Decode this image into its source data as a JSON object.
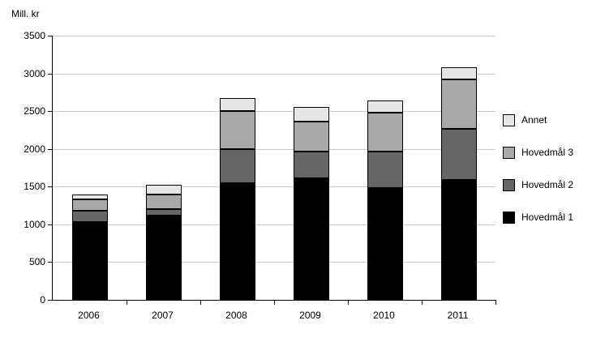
{
  "chart_data": {
    "type": "bar",
    "stacked": true,
    "categories": [
      "2006",
      "2007",
      "2008",
      "2009",
      "2010",
      "2011"
    ],
    "series": [
      {
        "name": "Hovedmål 1",
        "color": "#000000",
        "values": [
          1030,
          1120,
          1550,
          1610,
          1480,
          1590
        ]
      },
      {
        "name": "Hovedmål 2",
        "color": "#666666",
        "values": [
          150,
          80,
          450,
          350,
          490,
          680
        ]
      },
      {
        "name": "Hovedmål 3",
        "color": "#a9a9a9",
        "values": [
          150,
          200,
          500,
          400,
          510,
          650
        ]
      },
      {
        "name": "Annet",
        "color": "#e6e6e6",
        "values": [
          70,
          120,
          170,
          190,
          160,
          160
        ]
      }
    ],
    "title": "",
    "xlabel": "",
    "ylabel": "Mill. kr",
    "ylim": [
      0,
      3500
    ],
    "ytick_step": 500,
    "grid": true,
    "legend_position": "right",
    "legend_order_top_to_bottom": [
      "Annet",
      "Hovedmål 3",
      "Hovedmål 2",
      "Hovedmål 1"
    ]
  },
  "colors": {
    "background": "#ffffff",
    "gridline": "#c8c8c8",
    "axis": "#000000"
  }
}
